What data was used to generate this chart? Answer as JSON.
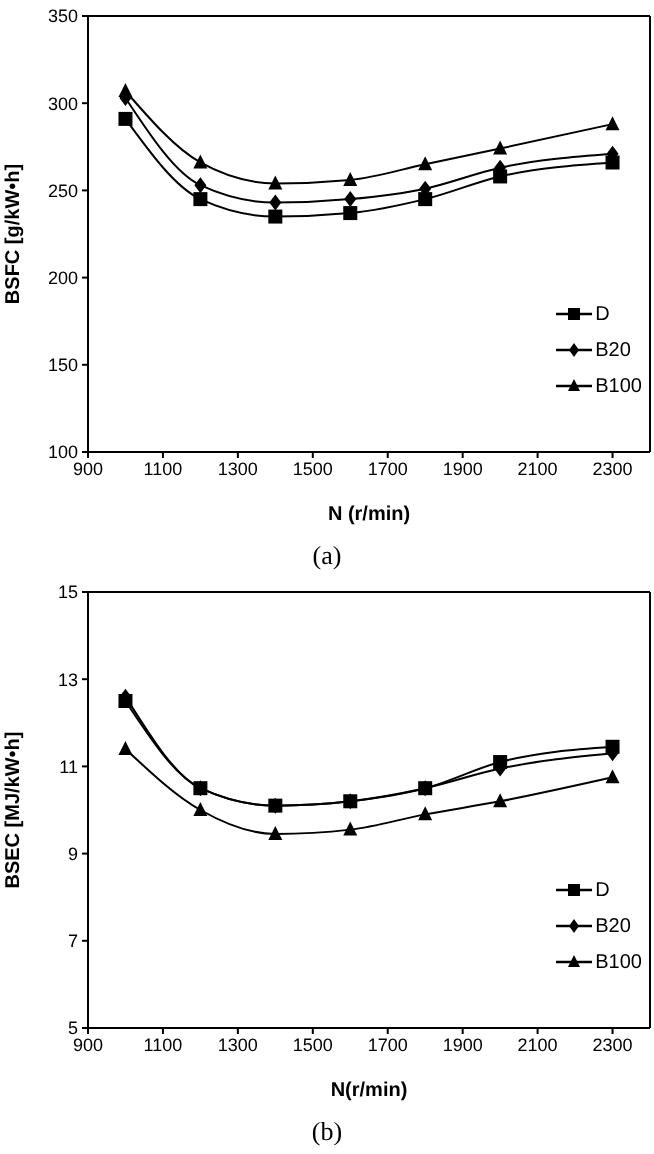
{
  "chart_data": [
    {
      "type": "line",
      "title": "(a)",
      "xlabel": "N (r/min)",
      "ylabel": "BSFC [g/kW•h]",
      "x": [
        1000,
        1200,
        1400,
        1600,
        1800,
        2000,
        2300
      ],
      "xlim": [
        900,
        2400
      ],
      "xticks": [
        900,
        1100,
        1300,
        1500,
        1700,
        1900,
        2100,
        2300
      ],
      "ylim": [
        100,
        350
      ],
      "yticks": [
        100,
        150,
        200,
        250,
        300,
        350
      ],
      "legend": "right",
      "line_style": "solid",
      "series": [
        {
          "name": "D",
          "color": "#000000",
          "marker": "square",
          "values": [
            291,
            245,
            235,
            237,
            245,
            258,
            266
          ]
        },
        {
          "name": "B20",
          "color": "#000000",
          "marker": "diamond",
          "values": [
            303,
            253,
            243,
            245,
            251,
            263,
            271
          ]
        },
        {
          "name": "B100",
          "color": "#000000",
          "marker": "triangle",
          "values": [
            307,
            266,
            254,
            256,
            265,
            274,
            288
          ]
        }
      ]
    },
    {
      "type": "line",
      "title": "(b)",
      "xlabel": "N(r/min)",
      "ylabel": "BSEC [MJ/kW•h]",
      "x": [
        1000,
        1200,
        1400,
        1600,
        1800,
        2000,
        2300
      ],
      "xlim": [
        900,
        2400
      ],
      "xticks": [
        900,
        1100,
        1300,
        1500,
        1700,
        1900,
        2100,
        2300
      ],
      "ylim": [
        5,
        15
      ],
      "yticks": [
        5,
        7,
        9,
        11,
        13,
        15
      ],
      "legend": "right",
      "line_style": "solid",
      "series": [
        {
          "name": "D",
          "color": "#000000",
          "marker": "square",
          "values": [
            12.5,
            10.5,
            10.1,
            10.2,
            10.5,
            11.1,
            11.45
          ]
        },
        {
          "name": "B20",
          "color": "#000000",
          "marker": "diamond",
          "values": [
            12.6,
            10.5,
            10.1,
            10.2,
            10.5,
            10.95,
            11.3
          ]
        },
        {
          "name": "B100",
          "color": "#000000",
          "marker": "triangle",
          "values": [
            11.4,
            10.0,
            9.45,
            9.55,
            9.9,
            10.2,
            10.75
          ]
        }
      ]
    }
  ]
}
